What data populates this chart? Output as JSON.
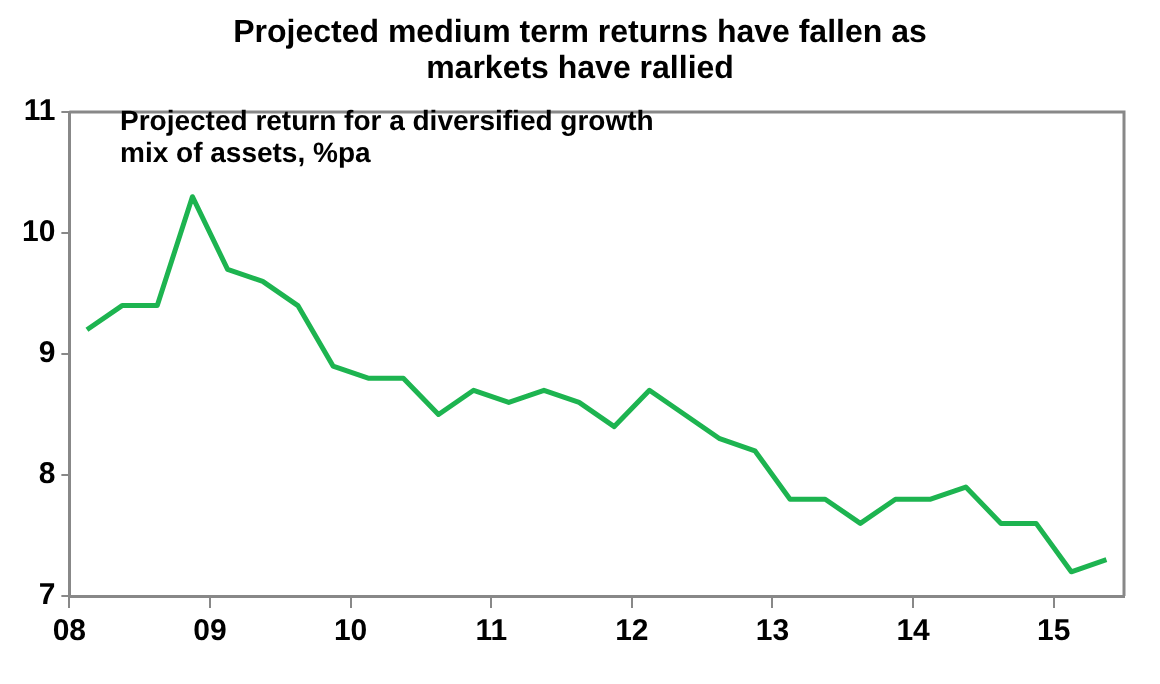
{
  "chart_data": {
    "type": "line",
    "title": "Projected medium term returns have fallen as markets have rallied",
    "annotations": [
      "Projected return for a diversified growth mix of assets, %pa"
    ],
    "x": [
      2008.125,
      2008.375,
      2008.625,
      2008.875,
      2009.125,
      2009.375,
      2009.625,
      2009.875,
      2010.125,
      2010.375,
      2010.625,
      2010.875,
      2011.125,
      2011.375,
      2011.625,
      2011.875,
      2012.125,
      2012.375,
      2012.625,
      2012.875,
      2013.125,
      2013.375,
      2013.625,
      2013.875,
      2014.125,
      2014.375,
      2014.625,
      2014.875,
      2015.125,
      2015.375
    ],
    "series": [
      {
        "color": "#1db450",
        "values": [
          9.2,
          9.4,
          9.4,
          10.3,
          9.7,
          9.6,
          9.4,
          8.9,
          8.8,
          8.8,
          8.5,
          8.7,
          8.6,
          8.7,
          8.6,
          8.4,
          8.7,
          8.5,
          8.3,
          8.2,
          7.8,
          7.8,
          7.6,
          7.8,
          7.8,
          7.9,
          7.6,
          7.6,
          7.2,
          7.3
        ]
      }
    ],
    "xlim": [
      2008,
      2015.5
    ],
    "xticks": [
      {
        "value": 2008,
        "label": "08"
      },
      {
        "value": 2009,
        "label": "09"
      },
      {
        "value": 2010,
        "label": "10"
      },
      {
        "value": 2011,
        "label": "11"
      },
      {
        "value": 2012,
        "label": "12"
      },
      {
        "value": 2013,
        "label": "13"
      },
      {
        "value": 2014,
        "label": "14"
      },
      {
        "value": 2015,
        "label": "15"
      }
    ],
    "ylim": [
      7,
      11
    ],
    "yticks": [
      7,
      8,
      9,
      10,
      11
    ],
    "grid": false,
    "legend": false,
    "marker": "none",
    "line_style": "solid"
  }
}
